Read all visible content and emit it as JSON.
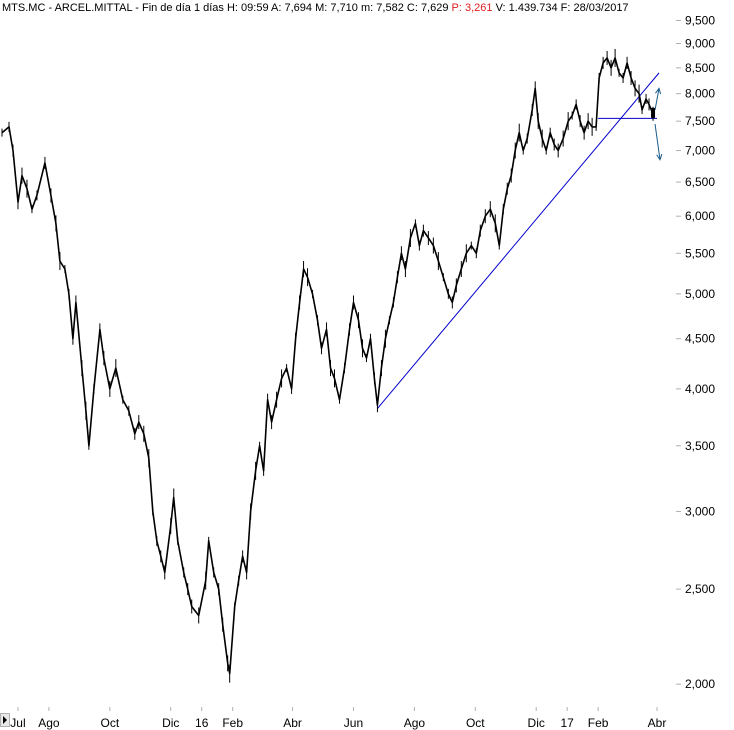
{
  "header": {
    "symbol": "MTS.MC",
    "name": "ARCEL.MITTAL",
    "period": "Fin de día 1 días",
    "fields": [
      {
        "label": "H:",
        "value": "09:59"
      },
      {
        "label": "A:",
        "value": "7,694"
      },
      {
        "label": "M:",
        "value": "7,710"
      },
      {
        "label": "m:",
        "value": "7,582"
      },
      {
        "label": "C:",
        "value": "7,629"
      }
    ],
    "pct_label": "P:",
    "pct_value": "3,261",
    "volume_label": "V:",
    "volume_value": "1.439.734",
    "date_label": "F:",
    "date_value": "28/03/2017"
  },
  "colors": {
    "price": "#000000",
    "trendline": "#0000cc",
    "arrows": "#1a5a8a",
    "pct_text": "#e02020",
    "tick_line": "#b0b0b0"
  },
  "chart_data": {
    "type": "line",
    "y_scale": "log",
    "ylim": [
      1.9,
      9.6
    ],
    "yticks": [
      {
        "value": 2.0,
        "label": "2,000"
      },
      {
        "value": 2.5,
        "label": "2,500"
      },
      {
        "value": 3.0,
        "label": "3,000"
      },
      {
        "value": 3.5,
        "label": "3,500"
      },
      {
        "value": 4.0,
        "label": "4,000"
      },
      {
        "value": 4.5,
        "label": "4,500"
      },
      {
        "value": 5.0,
        "label": "5,000"
      },
      {
        "value": 5.5,
        "label": "5,500"
      },
      {
        "value": 6.0,
        "label": "6,000"
      },
      {
        "value": 6.5,
        "label": "6,500"
      },
      {
        "value": 7.0,
        "label": "7,000"
      },
      {
        "value": 7.5,
        "label": "7,500"
      },
      {
        "value": 8.0,
        "label": "8,000"
      },
      {
        "value": 8.5,
        "label": "8,500"
      },
      {
        "value": 9.0,
        "label": "9,000"
      },
      {
        "value": 9.5,
        "label": "9,500"
      }
    ],
    "xlim": [
      "2015-06-15",
      "2017-04-20"
    ],
    "xticks": [
      {
        "date": "2015-07-01",
        "label": "Jul"
      },
      {
        "date": "2015-08-01",
        "label": "Ago"
      },
      {
        "date": "2015-10-01",
        "label": "Oct"
      },
      {
        "date": "2015-12-01",
        "label": "Dic"
      },
      {
        "date": "2016-01-01",
        "label": "16"
      },
      {
        "date": "2016-02-01",
        "label": "Feb"
      },
      {
        "date": "2016-04-01",
        "label": "Abr"
      },
      {
        "date": "2016-06-01",
        "label": "Jun"
      },
      {
        "date": "2016-08-01",
        "label": "Ago"
      },
      {
        "date": "2016-10-01",
        "label": "Oct"
      },
      {
        "date": "2016-12-01",
        "label": "Dic"
      },
      {
        "date": "2017-01-01",
        "label": "17"
      },
      {
        "date": "2017-02-01",
        "label": "Feb"
      },
      {
        "date": "2017-04-01",
        "label": "Abr"
      }
    ],
    "series": [
      {
        "points": [
          [
            "2015-06-15",
            7.3
          ],
          [
            "2015-06-22",
            7.4
          ],
          [
            "2015-06-26",
            7.0
          ],
          [
            "2015-07-01",
            6.2
          ],
          [
            "2015-07-05",
            6.6
          ],
          [
            "2015-07-10",
            6.4
          ],
          [
            "2015-07-15",
            6.1
          ],
          [
            "2015-07-20",
            6.3
          ],
          [
            "2015-07-28",
            6.8
          ],
          [
            "2015-08-03",
            6.3
          ],
          [
            "2015-08-08",
            5.9
          ],
          [
            "2015-08-12",
            5.4
          ],
          [
            "2015-08-17",
            5.3
          ],
          [
            "2015-08-21",
            5.0
          ],
          [
            "2015-08-25",
            4.5
          ],
          [
            "2015-08-28",
            4.9
          ],
          [
            "2015-09-03",
            4.2
          ],
          [
            "2015-09-07",
            3.8
          ],
          [
            "2015-09-10",
            3.5
          ],
          [
            "2015-09-15",
            4.0
          ],
          [
            "2015-09-21",
            4.6
          ],
          [
            "2015-09-25",
            4.3
          ],
          [
            "2015-10-01",
            4.0
          ],
          [
            "2015-10-07",
            4.2
          ],
          [
            "2015-10-14",
            3.9
          ],
          [
            "2015-10-20",
            3.8
          ],
          [
            "2015-10-26",
            3.6
          ],
          [
            "2015-10-30",
            3.7
          ],
          [
            "2015-11-04",
            3.6
          ],
          [
            "2015-11-09",
            3.4
          ],
          [
            "2015-11-13",
            3.0
          ],
          [
            "2015-11-17",
            2.8
          ],
          [
            "2015-11-21",
            2.7
          ],
          [
            "2015-11-25",
            2.6
          ],
          [
            "2015-12-01",
            2.9
          ],
          [
            "2015-12-04",
            3.1
          ],
          [
            "2015-12-08",
            2.8
          ],
          [
            "2015-12-14",
            2.6
          ],
          [
            "2015-12-18",
            2.5
          ],
          [
            "2015-12-22",
            2.4
          ],
          [
            "2015-12-29",
            2.35
          ],
          [
            "2016-01-05",
            2.55
          ],
          [
            "2016-01-08",
            2.8
          ],
          [
            "2016-01-13",
            2.6
          ],
          [
            "2016-01-18",
            2.5
          ],
          [
            "2016-01-22",
            2.3
          ],
          [
            "2016-01-27",
            2.1
          ],
          [
            "2016-01-29",
            2.05
          ],
          [
            "2016-02-03",
            2.4
          ],
          [
            "2016-02-07",
            2.55
          ],
          [
            "2016-02-11",
            2.7
          ],
          [
            "2016-02-15",
            2.6
          ],
          [
            "2016-02-19",
            3.0
          ],
          [
            "2016-02-24",
            3.3
          ],
          [
            "2016-02-28",
            3.5
          ],
          [
            "2016-03-03",
            3.3
          ],
          [
            "2016-03-07",
            3.9
          ],
          [
            "2016-03-11",
            3.7
          ],
          [
            "2016-03-16",
            3.9
          ],
          [
            "2016-03-21",
            4.1
          ],
          [
            "2016-03-26",
            4.2
          ],
          [
            "2016-03-31",
            4.0
          ],
          [
            "2016-04-04",
            4.5
          ],
          [
            "2016-04-08",
            4.9
          ],
          [
            "2016-04-12",
            5.3
          ],
          [
            "2016-04-16",
            5.2
          ],
          [
            "2016-04-21",
            5.0
          ],
          [
            "2016-04-26",
            4.7
          ],
          [
            "2016-04-30",
            4.4
          ],
          [
            "2016-05-05",
            4.6
          ],
          [
            "2016-05-09",
            4.2
          ],
          [
            "2016-05-13",
            4.1
          ],
          [
            "2016-05-18",
            3.9
          ],
          [
            "2016-05-23",
            4.2
          ],
          [
            "2016-05-28",
            4.6
          ],
          [
            "2016-06-01",
            4.9
          ],
          [
            "2016-06-06",
            4.7
          ],
          [
            "2016-06-10",
            4.4
          ],
          [
            "2016-06-14",
            4.3
          ],
          [
            "2016-06-18",
            4.5
          ],
          [
            "2016-06-22",
            4.1
          ],
          [
            "2016-06-25",
            3.85
          ],
          [
            "2016-06-29",
            4.2
          ],
          [
            "2016-07-03",
            4.5
          ],
          [
            "2016-07-07",
            4.7
          ],
          [
            "2016-07-11",
            4.9
          ],
          [
            "2016-07-15",
            5.2
          ],
          [
            "2016-07-19",
            5.5
          ],
          [
            "2016-07-23",
            5.3
          ],
          [
            "2016-07-28",
            5.7
          ],
          [
            "2016-08-02",
            5.9
          ],
          [
            "2016-08-06",
            5.6
          ],
          [
            "2016-08-10",
            5.8
          ],
          [
            "2016-08-15",
            5.7
          ],
          [
            "2016-08-20",
            5.6
          ],
          [
            "2016-08-25",
            5.4
          ],
          [
            "2016-08-30",
            5.2
          ],
          [
            "2016-09-04",
            5.0
          ],
          [
            "2016-09-08",
            4.9
          ],
          [
            "2016-09-12",
            5.1
          ],
          [
            "2016-09-17",
            5.3
          ],
          [
            "2016-09-22",
            5.5
          ],
          [
            "2016-09-27",
            5.6
          ],
          [
            "2016-10-02",
            5.5
          ],
          [
            "2016-10-06",
            5.8
          ],
          [
            "2016-10-11",
            6.0
          ],
          [
            "2016-10-16",
            6.1
          ],
          [
            "2016-10-21",
            5.9
          ],
          [
            "2016-10-25",
            5.6
          ],
          [
            "2016-10-29",
            6.1
          ],
          [
            "2016-11-02",
            6.4
          ],
          [
            "2016-11-06",
            6.6
          ],
          [
            "2016-11-10",
            7.0
          ],
          [
            "2016-11-14",
            7.3
          ],
          [
            "2016-11-18",
            7.0
          ],
          [
            "2016-11-22",
            7.2
          ],
          [
            "2016-11-27",
            7.7
          ],
          [
            "2016-11-30",
            8.1
          ],
          [
            "2016-12-03",
            7.5
          ],
          [
            "2016-12-07",
            7.2
          ],
          [
            "2016-12-11",
            7.0
          ],
          [
            "2016-12-15",
            7.3
          ],
          [
            "2016-12-19",
            7.1
          ],
          [
            "2016-12-23",
            7.0
          ],
          [
            "2016-12-28",
            7.2
          ],
          [
            "2017-01-02",
            7.5
          ],
          [
            "2017-01-06",
            7.6
          ],
          [
            "2017-01-10",
            7.8
          ],
          [
            "2017-01-14",
            7.5
          ],
          [
            "2017-01-18",
            7.3
          ],
          [
            "2017-01-22",
            7.5
          ],
          [
            "2017-01-26",
            7.4
          ],
          [
            "2017-01-30",
            7.4
          ],
          [
            "2017-02-02",
            8.3
          ],
          [
            "2017-02-06",
            8.6
          ],
          [
            "2017-02-10",
            8.7
          ],
          [
            "2017-02-14",
            8.5
          ],
          [
            "2017-02-18",
            8.7
          ],
          [
            "2017-02-22",
            8.4
          ],
          [
            "2017-02-26",
            8.3
          ],
          [
            "2017-03-02",
            8.6
          ],
          [
            "2017-03-06",
            8.3
          ],
          [
            "2017-03-10",
            8.1
          ],
          [
            "2017-03-14",
            8.0
          ],
          [
            "2017-03-17",
            7.7
          ],
          [
            "2017-03-21",
            7.9
          ],
          [
            "2017-03-24",
            7.8
          ],
          [
            "2017-03-28",
            7.63
          ]
        ]
      }
    ],
    "trendlines": [
      {
        "from": [
          "2016-06-25",
          3.82
        ],
        "to": [
          "2017-04-03",
          8.4
        ]
      },
      {
        "from": [
          "2017-02-01",
          7.55
        ],
        "to": [
          "2017-04-01",
          7.55
        ]
      }
    ],
    "arrows": [
      {
        "from": [
          "2017-03-30",
          7.7
        ],
        "to": [
          "2017-04-03",
          8.1
        ]
      },
      {
        "from": [
          "2017-03-30",
          7.45
        ],
        "to": [
          "2017-04-04",
          6.85
        ]
      }
    ],
    "last_close": [
      "2017-03-28",
      7.629
    ]
  }
}
